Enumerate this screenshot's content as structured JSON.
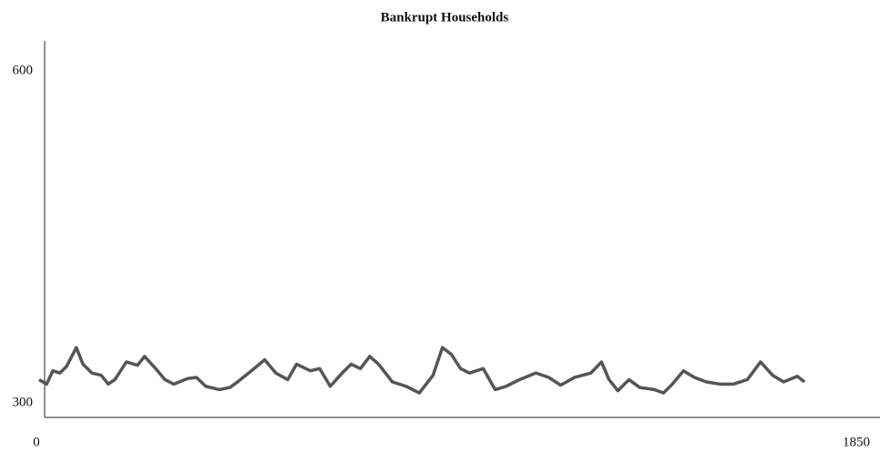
{
  "chart_data": {
    "type": "line",
    "title": "Bankrupt Households",
    "x": [
      6,
      23,
      37,
      53,
      68,
      90,
      105,
      125,
      146,
      162,
      177,
      203,
      228,
      244,
      269,
      290,
      310,
      341,
      361,
      382,
      413,
      437,
      454,
      485,
      515,
      540,
      567,
      587,
      618,
      639,
      663,
      690,
      710,
      731,
      752,
      772,
      803,
      834,
      864,
      895,
      916,
      936,
      957,
      977,
      1008,
      1035,
      1060,
      1090,
      1127,
      1156,
      1183,
      1214,
      1251,
      1275,
      1292,
      1312,
      1337,
      1361,
      1394,
      1415,
      1435,
      1460,
      1485,
      1511,
      1542,
      1573,
      1604,
      1634,
      1661,
      1686,
      1717,
      1733
    ],
    "series": [
      {
        "color": "#555555",
        "values": [
          321,
          317,
          329,
          327,
          333,
          350,
          335,
          327,
          325,
          317,
          321,
          337,
          334,
          342,
          331,
          321,
          317,
          322,
          323,
          315,
          312,
          314,
          319,
          329,
          339,
          327,
          321,
          335,
          329,
          331,
          315,
          327,
          335,
          331,
          342,
          335,
          319,
          315,
          309,
          325,
          350,
          344,
          331,
          327,
          331,
          312,
          315,
          321,
          327,
          323,
          316,
          323,
          327,
          337,
          321,
          311,
          321,
          314,
          312,
          309,
          317,
          329,
          323,
          319,
          317,
          317,
          321,
          337,
          325,
          319,
          324,
          319
        ]
      }
    ],
    "xlim": [
      0,
      1850
    ],
    "xticks": [
      0,
      1850
    ],
    "ylim": [
      300,
      600
    ],
    "yticks": [
      300,
      600
    ]
  }
}
